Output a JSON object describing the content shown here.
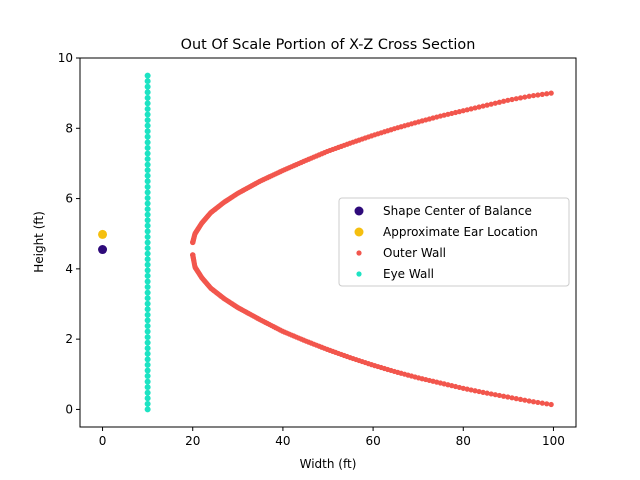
{
  "chart_data": {
    "type": "scatter",
    "title": "Out Of Scale Portion of X-Z Cross Section",
    "xlabel": "Width (ft)",
    "ylabel": "Height (ft)",
    "xlim": [
      -5,
      105
    ],
    "ylim": [
      -0.5,
      10
    ],
    "xticks": [
      0,
      20,
      40,
      60,
      80,
      100
    ],
    "yticks": [
      0,
      2,
      4,
      6,
      8,
      10
    ],
    "xtick_labels": [
      "0",
      "20",
      "40",
      "60",
      "80",
      "100"
    ],
    "ytick_labels": [
      "0",
      "2",
      "4",
      "6",
      "8",
      "10"
    ],
    "grid": false,
    "legend_placement": "center-right",
    "series": [
      {
        "name": "Shape Center of Balance",
        "kind": "point",
        "color": "#2e0a7a",
        "points": [
          [
            0,
            4.55
          ]
        ]
      },
      {
        "name": "Approximate Ear Location",
        "kind": "point",
        "color": "#f5bf0f",
        "points": [
          [
            0,
            4.98
          ]
        ]
      },
      {
        "name": "Outer Wall",
        "kind": "curve",
        "color": "#f2564d",
        "x": [
          20,
          20.5,
          22,
          24,
          27,
          30,
          35,
          40,
          45,
          50,
          55,
          60,
          65,
          70,
          75,
          80,
          85,
          90,
          95,
          99.5
        ],
        "y_upper": [
          4.75,
          5.0,
          5.3,
          5.6,
          5.9,
          6.15,
          6.5,
          6.8,
          7.08,
          7.35,
          7.58,
          7.8,
          8.0,
          8.18,
          8.35,
          8.5,
          8.65,
          8.8,
          8.92,
          9.0
        ],
        "y_lower": [
          4.4,
          4.05,
          3.75,
          3.45,
          3.15,
          2.9,
          2.55,
          2.22,
          1.95,
          1.7,
          1.47,
          1.26,
          1.07,
          0.9,
          0.75,
          0.6,
          0.47,
          0.35,
          0.23,
          0.14
        ]
      },
      {
        "name": "Eye Wall",
        "kind": "vertical",
        "color": "#1de3c3",
        "x": 10,
        "y_range": [
          0,
          9.5
        ]
      }
    ]
  }
}
